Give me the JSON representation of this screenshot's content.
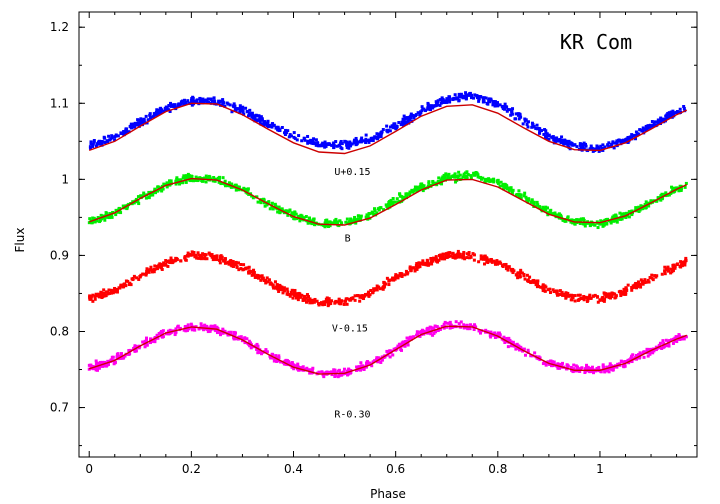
{
  "chart_data": {
    "type": "scatter",
    "title": "KR Com",
    "xlabel": "Phase",
    "ylabel": "Flux",
    "xlim": [
      -0.02,
      1.19
    ],
    "ylim": [
      0.635,
      1.22
    ],
    "xticks": [
      "0",
      "0.2",
      "0.4",
      "0.6",
      "0.8",
      "1"
    ],
    "xtick_values": [
      0,
      0.2,
      0.4,
      0.6,
      0.8,
      1.0
    ],
    "yticks": [
      "0.7",
      "0.8",
      "0.9",
      "1",
      "1.1",
      "1.2"
    ],
    "ytick_values": [
      0.7,
      0.8,
      0.9,
      1.0,
      1.1,
      1.2
    ],
    "grid": false,
    "colors": {
      "fit": "#cc0000",
      "frame": "#000000"
    },
    "series": [
      {
        "name": "U+0.15",
        "color": "#0000ff",
        "label_at": {
          "x": 0.48,
          "y": 1.006
        },
        "x": [
          0,
          0.05,
          0.1,
          0.15,
          0.2,
          0.25,
          0.3,
          0.35,
          0.4,
          0.45,
          0.5,
          0.55,
          0.6,
          0.65,
          0.7,
          0.75,
          0.8,
          0.85,
          0.9,
          0.95,
          1.0,
          1.05,
          1.1,
          1.15,
          1.17
        ],
        "y": [
          1.045,
          1.055,
          1.075,
          1.093,
          1.103,
          1.102,
          1.09,
          1.073,
          1.057,
          1.046,
          1.045,
          1.053,
          1.07,
          1.09,
          1.105,
          1.11,
          1.1,
          1.078,
          1.057,
          1.043,
          1.04,
          1.052,
          1.07,
          1.088,
          1.094
        ],
        "fit": [
          1.038,
          1.05,
          1.07,
          1.089,
          1.1,
          1.099,
          1.085,
          1.066,
          1.048,
          1.036,
          1.034,
          1.044,
          1.063,
          1.083,
          1.096,
          1.098,
          1.087,
          1.068,
          1.05,
          1.039,
          1.038,
          1.048,
          1.066,
          1.085,
          1.091
        ]
      },
      {
        "name": "B",
        "color": "#00ee00",
        "label_at": {
          "x": 0.5,
          "y": 0.918
        },
        "x": [
          0,
          0.05,
          0.1,
          0.15,
          0.2,
          0.25,
          0.3,
          0.35,
          0.4,
          0.45,
          0.5,
          0.55,
          0.6,
          0.65,
          0.7,
          0.75,
          0.8,
          0.85,
          0.9,
          0.95,
          1.0,
          1.05,
          1.1,
          1.15,
          1.17
        ],
        "y": [
          0.945,
          0.955,
          0.975,
          0.993,
          1.002,
          1.0,
          0.987,
          0.968,
          0.952,
          0.942,
          0.942,
          0.952,
          0.972,
          0.99,
          1.002,
          1.005,
          0.996,
          0.977,
          0.957,
          0.945,
          0.943,
          0.952,
          0.97,
          0.987,
          0.993
        ],
        "fit": [
          0.944,
          0.956,
          0.975,
          0.992,
          1.001,
          0.999,
          0.986,
          0.968,
          0.951,
          0.941,
          0.94,
          0.949,
          0.967,
          0.986,
          0.999,
          1.0,
          0.99,
          0.972,
          0.954,
          0.944,
          0.943,
          0.952,
          0.969,
          0.987,
          0.993
        ]
      },
      {
        "name": "V-0.15",
        "color": "#ff0000",
        "label_at": {
          "x": 0.475,
          "y": 0.8
        },
        "x": [
          0,
          0.05,
          0.1,
          0.15,
          0.2,
          0.25,
          0.3,
          0.35,
          0.4,
          0.45,
          0.5,
          0.55,
          0.6,
          0.65,
          0.7,
          0.75,
          0.8,
          0.85,
          0.9,
          0.95,
          1.0,
          1.05,
          1.1,
          1.15,
          1.17
        ],
        "y": [
          0.843,
          0.853,
          0.872,
          0.89,
          0.9,
          0.898,
          0.884,
          0.865,
          0.848,
          0.838,
          0.84,
          0.85,
          0.87,
          0.888,
          0.9,
          0.9,
          0.89,
          0.872,
          0.855,
          0.845,
          0.843,
          0.853,
          0.87,
          0.886,
          0.892
        ],
        "fit": null
      },
      {
        "name": "R-0.30",
        "color": "#ff00ee",
        "label_at": {
          "x": 0.48,
          "y": 0.687
        },
        "x": [
          0,
          0.05,
          0.1,
          0.15,
          0.2,
          0.25,
          0.3,
          0.35,
          0.4,
          0.45,
          0.5,
          0.55,
          0.6,
          0.65,
          0.7,
          0.75,
          0.8,
          0.85,
          0.9,
          0.95,
          1.0,
          1.05,
          1.1,
          1.15,
          1.17
        ],
        "y": [
          0.752,
          0.762,
          0.781,
          0.798,
          0.806,
          0.803,
          0.789,
          0.77,
          0.754,
          0.745,
          0.746,
          0.757,
          0.777,
          0.797,
          0.808,
          0.807,
          0.795,
          0.776,
          0.759,
          0.75,
          0.749,
          0.758,
          0.775,
          0.79,
          0.795
        ],
        "fit": [
          0.751,
          0.762,
          0.781,
          0.798,
          0.806,
          0.803,
          0.789,
          0.77,
          0.753,
          0.744,
          0.745,
          0.756,
          0.776,
          0.796,
          0.807,
          0.806,
          0.794,
          0.775,
          0.758,
          0.749,
          0.749,
          0.758,
          0.775,
          0.79,
          0.795
        ]
      }
    ]
  }
}
